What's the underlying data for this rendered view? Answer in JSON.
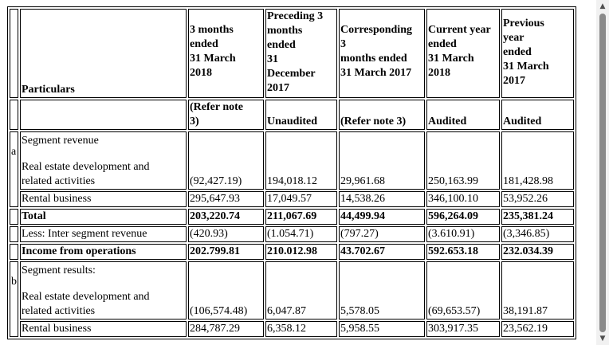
{
  "headers": {
    "particulars": "Particulars",
    "c1": [
      "3 months",
      "ended",
      "31 March",
      "2018"
    ],
    "c2": [
      "Preceding 3",
      "months",
      "ended",
      "31",
      "December",
      "2017"
    ],
    "c3": [
      "Corresponding",
      "3",
      "months ended",
      "31 March 2017"
    ],
    "c4": [
      "Current year",
      "ended",
      "31 March",
      "2018"
    ],
    "c5": [
      "Previous",
      "year",
      "ended",
      "31 March",
      "2017"
    ]
  },
  "subheaders": {
    "c1": [
      "(Refer note",
      "3)"
    ],
    "c2": "Unaudited",
    "c3": "(Refer note 3)",
    "c4": "Audited",
    "c5": "Audited"
  },
  "section_a": {
    "marker": "a",
    "title": "Segment revenue",
    "rows": [
      {
        "label": [
          "Real estate development and",
          "related activities"
        ],
        "values": [
          "(92,427.19)",
          "194,018.12",
          "29,961.68",
          "250,163.99",
          "181,428.98"
        ]
      },
      {
        "label": [
          "Rental business"
        ],
        "values": [
          "295,647.93",
          "17,049.57",
          "14,538.26",
          "346,100.10",
          "53,952.26"
        ]
      }
    ],
    "total": {
      "label": "Total",
      "values": [
        "203,220.74",
        "211,067.69",
        "44,499.94",
        "596,264.09",
        "235,381.24"
      ]
    },
    "less": {
      "label": "Less: Inter segment revenue",
      "values": [
        "(420.93)",
        "(1.054.71)",
        "(797.27)",
        "(3.610.91)",
        "(3,346.85)"
      ]
    },
    "income": {
      "label": "Income from operations",
      "values": [
        "202.799.81",
        "210.012.98",
        "43.702.67",
        "592.653.18",
        "232.034.39"
      ]
    }
  },
  "section_b": {
    "marker": "b",
    "title": "Segment results:",
    "rows": [
      {
        "label": [
          "Real estate development and",
          "related activities"
        ],
        "values": [
          "(106,574.48)",
          "6,047.87",
          "5,578.05",
          "(69,653.57)",
          "38,191.87"
        ]
      },
      {
        "label": [
          "Rental business"
        ],
        "values": [
          "284,787.29",
          "6,358.12",
          "5,958.55",
          "303,917.35",
          "23,562.19"
        ]
      }
    ]
  }
}
